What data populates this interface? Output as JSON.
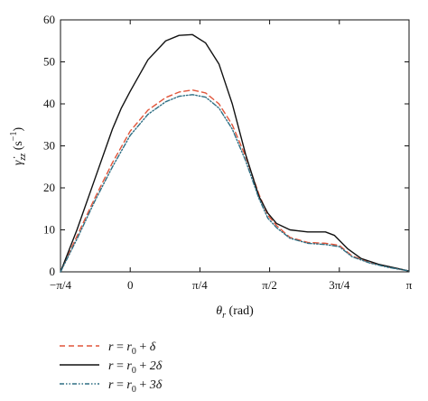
{
  "chart_data": {
    "type": "line",
    "xlabel": "θr (rad)",
    "ylabel": "γ̇zz (s−1)",
    "xlim": [
      -0.7854,
      3.1416
    ],
    "ylim": [
      0,
      60
    ],
    "grid": false,
    "legend_placement": "bottom-left, below plot",
    "x_ticks": [
      {
        "value": -0.7854,
        "label": "−π/4"
      },
      {
        "value": 0,
        "label": "0"
      },
      {
        "value": 0.7854,
        "label": "π/4"
      },
      {
        "value": 1.5708,
        "label": "π/2"
      },
      {
        "value": 2.3562,
        "label": "3π/4"
      },
      {
        "value": 3.1416,
        "label": "π"
      }
    ],
    "y_ticks": [
      0,
      10,
      20,
      30,
      40,
      50,
      60
    ],
    "series": [
      {
        "name": "r = r0 + δ",
        "color": "#e0553a",
        "dash": "dashed",
        "x": [
          -0.785,
          -0.6,
          -0.4,
          -0.2,
          0,
          0.2,
          0.4,
          0.55,
          0.7,
          0.85,
          1.0,
          1.15,
          1.3,
          1.45,
          1.55,
          1.65,
          1.8,
          2.0,
          2.2,
          2.356,
          2.5,
          2.7,
          2.9,
          3.1416
        ],
        "y": [
          0,
          8.5,
          17.5,
          26,
          33.5,
          38.5,
          41.5,
          42.8,
          43.3,
          42.6,
          40,
          35,
          27.5,
          18.5,
          13.5,
          11,
          8.2,
          7,
          6.8,
          6.3,
          3.8,
          2.2,
          1.2,
          0.2
        ]
      },
      {
        "name": "r = r0 + 2δ",
        "color": "#111111",
        "dash": "solid",
        "x": [
          -0.785,
          -0.6,
          -0.4,
          -0.2,
          -0.1,
          0,
          0.2,
          0.4,
          0.55,
          0.7,
          0.85,
          1.0,
          1.15,
          1.3,
          1.45,
          1.55,
          1.65,
          1.8,
          2.0,
          2.2,
          2.3,
          2.45,
          2.6,
          2.8,
          3.1416
        ],
        "y": [
          0,
          10,
          22,
          34,
          39,
          43,
          50.5,
          55,
          56.3,
          56.5,
          54.5,
          49.5,
          40,
          28,
          18,
          14,
          11.5,
          10,
          9.5,
          9.5,
          8.7,
          5.5,
          3.2,
          1.8,
          0.2
        ]
      },
      {
        "name": "r = r0 + 3δ",
        "color": "#2e6f84",
        "dash": "dashdotdot",
        "x": [
          -0.785,
          -0.6,
          -0.4,
          -0.2,
          0,
          0.2,
          0.4,
          0.55,
          0.7,
          0.85,
          1.0,
          1.15,
          1.3,
          1.45,
          1.55,
          1.65,
          1.8,
          2.0,
          2.2,
          2.356,
          2.5,
          2.7,
          2.9,
          3.1416
        ],
        "y": [
          0,
          7.8,
          16.8,
          25,
          32.5,
          37.5,
          40.5,
          41.8,
          42.2,
          41.6,
          39,
          34,
          26.5,
          17.5,
          12.8,
          10.5,
          8,
          6.8,
          6.5,
          6,
          3.6,
          2.1,
          1.1,
          0.2
        ]
      }
    ]
  }
}
